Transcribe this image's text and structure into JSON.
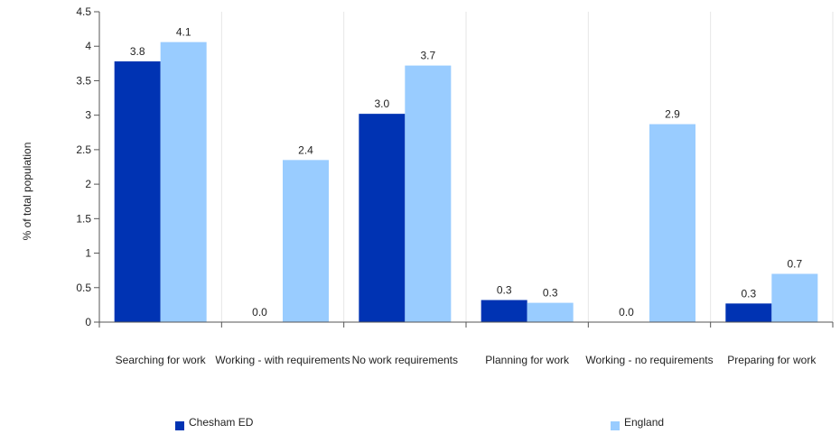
{
  "chart_data": {
    "type": "bar",
    "title": "",
    "xlabel": "",
    "ylabel": "% of total population",
    "ylim": [
      0,
      4.5
    ],
    "yticks": [
      "0",
      "0.5",
      "1",
      "1.5",
      "2",
      "2.5",
      "3",
      "3.5",
      "4",
      "4.5"
    ],
    "grid": "vertical separators between categories",
    "legend_position": "bottom",
    "categories": [
      "Searching for work",
      "Working - with requirements",
      "No work requirements",
      "Planning for work",
      "Working - no requirements",
      "Preparing for work"
    ],
    "series": [
      {
        "name": "Chesham ED",
        "color": "#0033b3",
        "values": [
          3.78,
          0.0,
          3.02,
          0.32,
          0.0,
          0.27
        ],
        "labels": [
          "3.8",
          "0.0",
          "3.0",
          "0.3",
          "0.0",
          "0.3"
        ]
      },
      {
        "name": "England",
        "color": "#99ccff",
        "values": [
          4.06,
          2.35,
          3.72,
          0.28,
          2.87,
          0.7
        ],
        "labels": [
          "4.1",
          "2.4",
          "3.7",
          "0.3",
          "2.9",
          "0.7"
        ]
      }
    ]
  }
}
